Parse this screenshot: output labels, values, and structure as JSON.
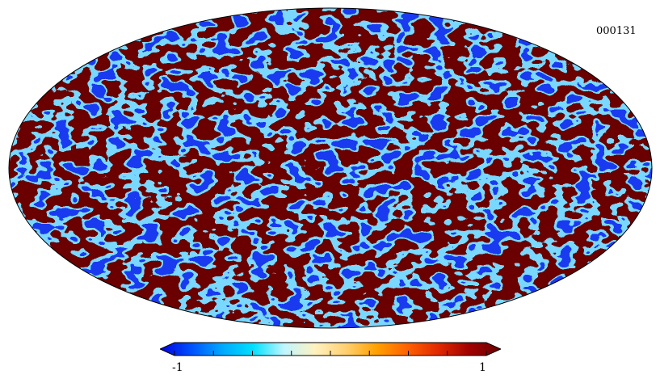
{
  "map": {
    "id_label": "000131",
    "projection": "mollweide",
    "background_color": "#ffffff",
    "outline_color": "#000000"
  },
  "colorbar": {
    "min_label": "-1",
    "max_label": "1",
    "range": [
      -1,
      1
    ],
    "tick_count": 9,
    "colormap": [
      "#0000e0",
      "#0050ff",
      "#00a8ff",
      "#00e0ff",
      "#bff5ff",
      "#fff2c0",
      "#ffd070",
      "#ffa000",
      "#ff6000",
      "#e02800",
      "#a00000",
      "#6a0000"
    ]
  },
  "field_colors": {
    "low": "#1a3af0",
    "high": "#6a0000",
    "mid_cold": "#7ad8ff",
    "mid_warm": "#ffe6a0",
    "edge_hot": "#ff4a00"
  }
}
